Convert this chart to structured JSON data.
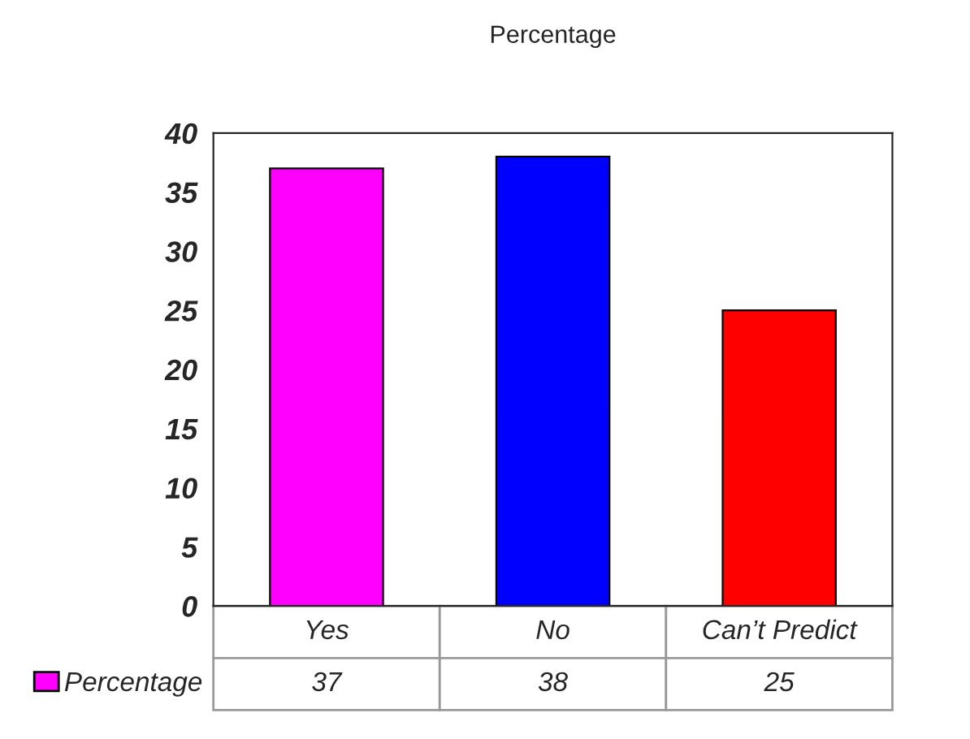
{
  "chart_data": {
    "type": "bar",
    "title": "Percentage",
    "categories": [
      "Yes",
      "No",
      "Can’t Predict"
    ],
    "series": [
      {
        "name": "Percentage",
        "colors": [
          "#ff00ff",
          "#0000ff",
          "#ff0000"
        ],
        "values": [
          37,
          38,
          25
        ]
      }
    ],
    "ylim": [
      0,
      40
    ],
    "yticks": [
      0,
      5,
      10,
      15,
      20,
      25,
      30,
      35,
      40
    ],
    "grid": false,
    "legend": "bottom left",
    "data_labels": true
  }
}
